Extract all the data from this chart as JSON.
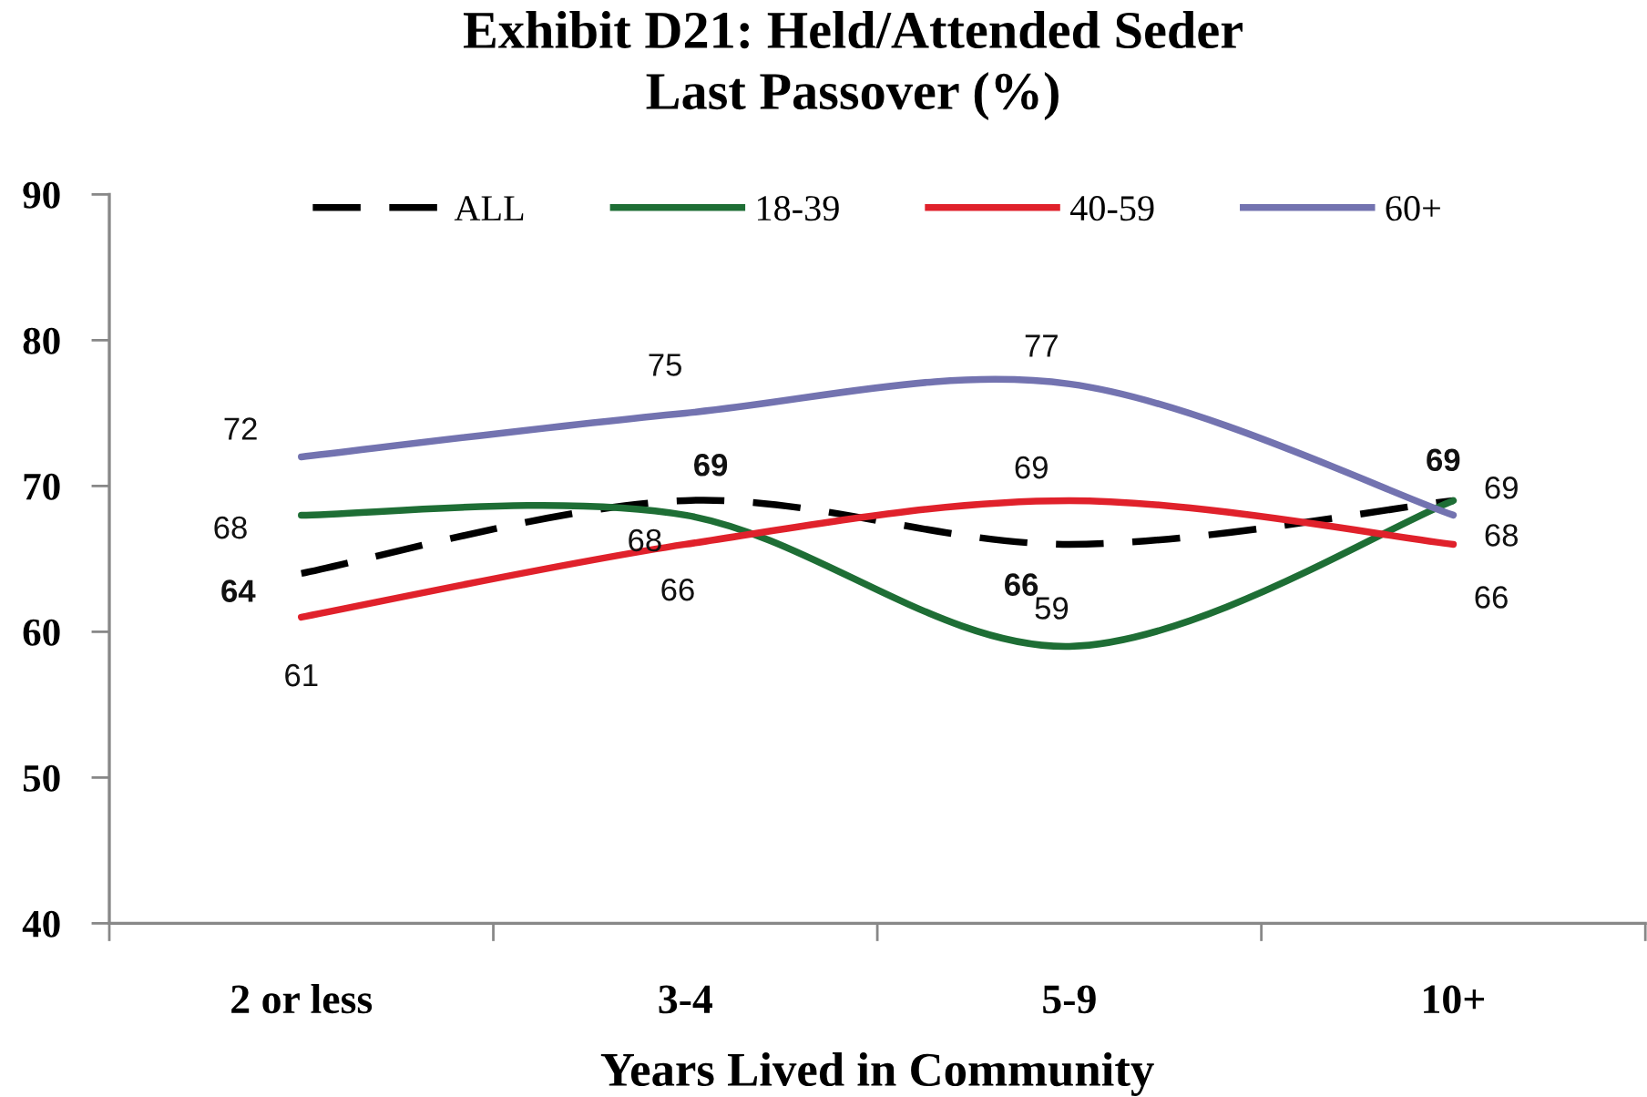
{
  "chart_data": {
    "type": "line",
    "title": "Exhibit D21: Held/Attended Seder\nLast Passover (%)",
    "xlabel": "Years Lived in Community",
    "categories": [
      "2 or less",
      "3-4",
      "5-9",
      "10+"
    ],
    "series": [
      {
        "name": "ALL",
        "color": "#000000",
        "line_style": "dashed",
        "values": [
          64,
          69,
          66,
          69
        ]
      },
      {
        "name": "18-39",
        "color": "#1e6e35",
        "values": [
          68,
          68,
          59,
          69
        ]
      },
      {
        "name": "40-59",
        "color": "#e0212b",
        "values": [
          61,
          66,
          69,
          66
        ]
      },
      {
        "name": "60+",
        "color": "#7373b0",
        "values": [
          72,
          75,
          77,
          68
        ]
      }
    ],
    "ylim": [
      40,
      90
    ],
    "yticks": [
      40,
      50,
      60,
      70,
      80,
      90
    ],
    "legend": "top",
    "data_labels": true,
    "line_style": "solid"
  }
}
